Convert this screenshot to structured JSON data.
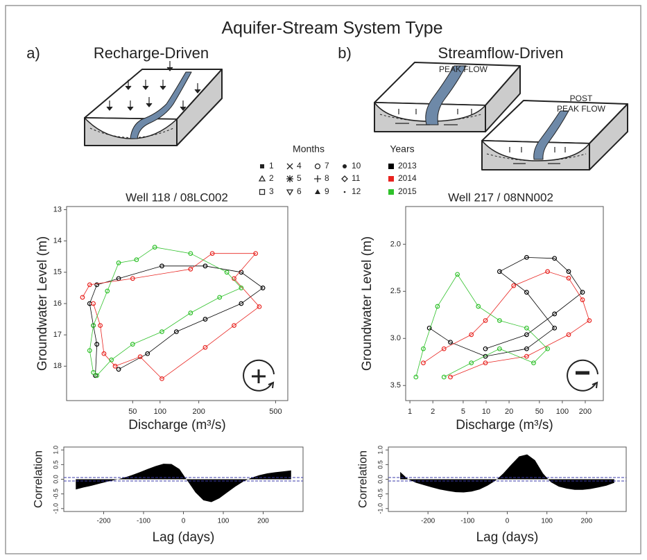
{
  "header": {
    "title": "Aquifer-Stream System Type"
  },
  "panels": [
    {
      "label": "a)",
      "title": "Recharge-Driven"
    },
    {
      "label": "b)",
      "title": "Streamflow-Driven",
      "annotations": [
        "PEAK FLOW",
        "POST",
        "PEAK FLOW"
      ]
    }
  ],
  "legend": {
    "months_title": "Months",
    "months": [
      "1",
      "2",
      "3",
      "4",
      "5",
      "6",
      "7",
      "8",
      "9",
      "10",
      "11",
      "12"
    ],
    "years_title": "Years"
  },
  "chart_data": [
    {
      "type": "scatter",
      "title": "Well 118 / 08LC002",
      "x_label": "Discharge (m³/s)",
      "y_label": "Groundwater Level (m)",
      "xscale": "sqrt",
      "xlim": [
        0,
        560
      ],
      "ylim": [
        19.1,
        12.9
      ],
      "xticks": [
        50,
        100,
        200,
        500
      ],
      "yticks": [
        13,
        14,
        15,
        16,
        17,
        18
      ],
      "series": [
        {
          "name": "2013",
          "color": "#000000",
          "x": [
            9.5,
            10.5,
            8.2,
            6.1,
            10.5,
            31,
            104,
            220,
            349,
            441,
            349,
            220,
            138,
            75,
            31
          ],
          "values": [
            18.3,
            17.3,
            16.7,
            16.0,
            15.4,
            15.2,
            14.8,
            14.8,
            15.0,
            15.5,
            16.0,
            16.5,
            16.9,
            17.6,
            18.1
          ]
        },
        {
          "name": "2014",
          "color": "#e8231f",
          "x": [
            2.9,
            6.1,
            50,
            176,
            243,
            409,
            321,
            425,
            321,
            220,
            104,
            62,
            27,
            16,
            13,
            8.2
          ],
          "values": [
            15.8,
            15.4,
            15.2,
            14.9,
            14.4,
            14.4,
            15.2,
            16.1,
            16.7,
            17.4,
            18.4,
            17.7,
            18.0,
            17.6,
            16.7,
            16.0
          ]
        },
        {
          "name": "2015",
          "color": "#2fc12a",
          "x": [
            8.2,
            6.1,
            8.2,
            19,
            31,
            56,
            89,
            176,
            294,
            349,
            268,
            176,
            104,
            50,
            23,
            10.5
          ],
          "values": [
            18.2,
            17.5,
            16.7,
            15.6,
            14.7,
            14.6,
            14.2,
            14.4,
            15.0,
            15.5,
            15.8,
            16.3,
            16.9,
            17.3,
            17.8,
            18.3
          ]
        }
      ]
    },
    {
      "type": "scatter",
      "title": "Well 217 / 08NN002",
      "x_label": "Discharge (m³/s)",
      "y_label": "Groundwater Level (m)",
      "xscale": "log",
      "xlim": [
        0.88,
        345
      ],
      "ylim": [
        3.66,
        1.6
      ],
      "xticks": [
        1,
        2,
        5,
        10,
        20,
        50,
        100,
        200
      ],
      "yticks": [
        {
          "value": 2,
          "label": "2.0"
        },
        2.5,
        {
          "value": 3,
          "label": "3.0"
        },
        3.5
      ],
      "series": [
        {
          "color": "#000000",
          "x": [
            1.8,
            3.4,
            9.8,
            34,
            79,
            34,
            15,
            34,
            79,
            121,
            184,
            79,
            34,
            9.8
          ],
          "values": [
            2.89,
            3.04,
            3.19,
            3.11,
            2.89,
            2.51,
            2.29,
            2.14,
            2.15,
            2.29,
            2.51,
            2.74,
            2.96,
            3.11
          ]
        },
        {
          "color": "#e8231f",
          "x": [
            1.5,
            2.8,
            6.4,
            9.8,
            23,
            64,
            121,
            184,
            226,
            121,
            34,
            9.8,
            3.4
          ],
          "values": [
            3.26,
            3.11,
            2.96,
            2.81,
            2.44,
            2.29,
            2.36,
            2.59,
            2.81,
            2.96,
            3.19,
            3.26,
            3.41
          ]
        },
        {
          "color": "#2fc12a",
          "x": [
            1.2,
            1.5,
            2.3,
            4.2,
            7.9,
            15,
            34,
            64,
            42,
            15,
            6.4,
            2.8
          ],
          "values": [
            3.41,
            3.11,
            2.66,
            2.32,
            2.66,
            2.81,
            2.89,
            3.11,
            3.26,
            3.11,
            3.26,
            3.41
          ]
        }
      ]
    },
    {
      "type": "area",
      "x_label": "Lag (days)",
      "y_label": "Correlation",
      "color": "#000000",
      "xlim": [
        -300,
        300
      ],
      "ylim": [
        -1.1,
        1.1
      ],
      "xticks": [
        -200,
        -100,
        0,
        100,
        200
      ],
      "yticks": [
        {
          "value": -1,
          "label": "-1.0"
        },
        -0.5,
        {
          "value": 0,
          "label": "0.0"
        },
        0.5,
        {
          "value": 1,
          "label": "1.0"
        }
      ],
      "ref_lines": [
        0.06,
        -0.06
      ],
      "ref_color": "#3a3aa8",
      "x": [
        -270,
        -250,
        -230,
        -210,
        -190,
        -170,
        -150,
        -130,
        -110,
        -90,
        -70,
        -50,
        -30,
        -10,
        10,
        30,
        50,
        70,
        90,
        110,
        130,
        150,
        170,
        190,
        210,
        230,
        250,
        270
      ],
      "values": [
        -0.35,
        -0.28,
        -0.22,
        -0.15,
        -0.08,
        -0.02,
        0.05,
        0.14,
        0.24,
        0.35,
        0.45,
        0.53,
        0.52,
        0.35,
        -0.05,
        -0.45,
        -0.72,
        -0.78,
        -0.65,
        -0.45,
        -0.25,
        -0.08,
        0.05,
        0.14,
        0.2,
        0.24,
        0.27,
        0.3
      ]
    },
    {
      "type": "area",
      "x_label": "Lag (days)",
      "y_label": "Correlation",
      "color": "#000000",
      "xlim": [
        -300,
        300
      ],
      "ylim": [
        -1.1,
        1.1
      ],
      "xticks": [
        -200,
        -100,
        0,
        100,
        200
      ],
      "yticks": [
        {
          "value": -1,
          "label": "-1.0"
        },
        -0.5,
        {
          "value": 0,
          "label": "0.0"
        },
        0.5,
        {
          "value": 1,
          "label": "1.0"
        }
      ],
      "ref_lines": [
        0.06,
        -0.06
      ],
      "ref_color": "#3a3aa8",
      "x": [
        -270,
        -250,
        -230,
        -210,
        -190,
        -170,
        -150,
        -130,
        -110,
        -90,
        -70,
        -50,
        -30,
        -10,
        10,
        30,
        50,
        70,
        90,
        110,
        130,
        150,
        170,
        190,
        210,
        230,
        250,
        270
      ],
      "values": [
        0.25,
        0.0,
        -0.12,
        -0.2,
        -0.28,
        -0.35,
        -0.4,
        -0.44,
        -0.45,
        -0.42,
        -0.35,
        -0.22,
        -0.05,
        0.2,
        0.5,
        0.78,
        0.85,
        0.65,
        0.2,
        -0.1,
        -0.25,
        -0.32,
        -0.36,
        -0.36,
        -0.33,
        -0.28,
        -0.22,
        -0.12
      ]
    }
  ]
}
